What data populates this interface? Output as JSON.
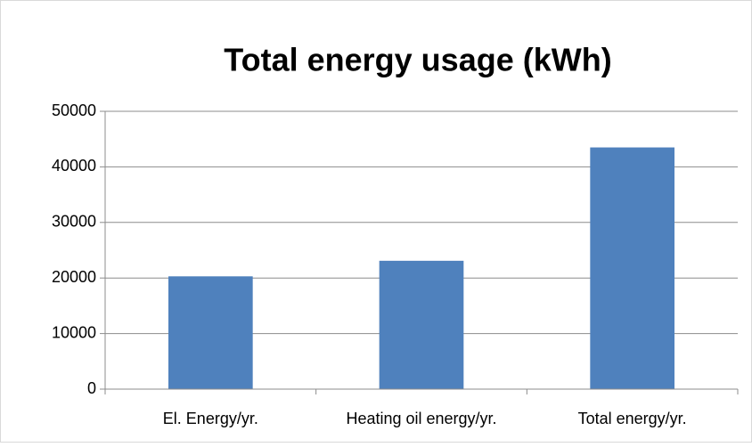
{
  "chart_data": {
    "type": "bar",
    "title": "Total energy usage (kWh)",
    "categories": [
      "El. Energy/yr.",
      "Heating oil energy/yr.",
      "Total energy/yr."
    ],
    "values": [
      20300,
      23100,
      43500
    ],
    "color": "#4f81bd",
    "ylim": [
      0,
      50000
    ],
    "yticks": [
      0,
      10000,
      20000,
      30000,
      40000,
      50000
    ],
    "grid": true
  }
}
